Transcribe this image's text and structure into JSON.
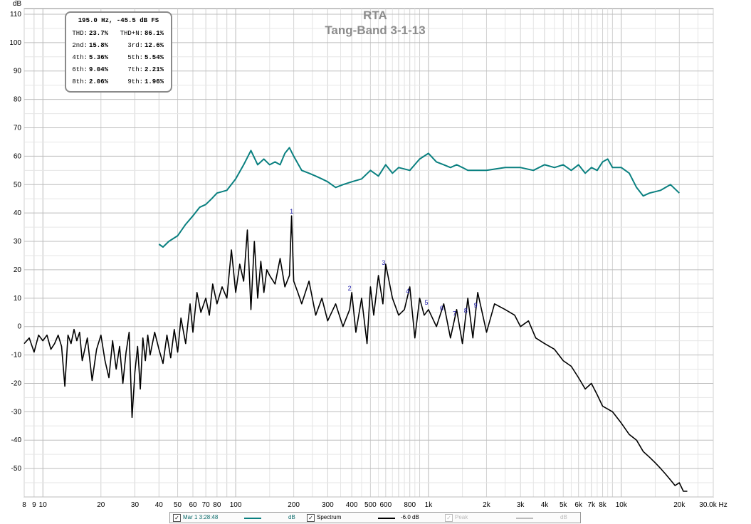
{
  "chart_data": {
    "type": "line",
    "title": "RTA",
    "subtitle": "Tang-Band 3-1-13",
    "ylabel": "dB",
    "xunit": "Hz",
    "xscale": "log",
    "xlim": [
      8,
      30000
    ],
    "ylim": [
      -60,
      112
    ],
    "grid": true,
    "yticks": [
      -50,
      -40,
      -30,
      -20,
      -10,
      0,
      10,
      20,
      30,
      40,
      50,
      60,
      70,
      80,
      90,
      100,
      110
    ],
    "xticks": [
      {
        "v": 8,
        "label": "8"
      },
      {
        "v": 9,
        "label": "9"
      },
      {
        "v": 10,
        "label": "10"
      },
      {
        "v": 20,
        "label": "20"
      },
      {
        "v": 30,
        "label": "30"
      },
      {
        "v": 40,
        "label": "40"
      },
      {
        "v": 50,
        "label": "50"
      },
      {
        "v": 60,
        "label": "60"
      },
      {
        "v": 70,
        "label": "70"
      },
      {
        "v": 80,
        "label": "80"
      },
      {
        "v": 100,
        "label": "100"
      },
      {
        "v": 200,
        "label": "200"
      },
      {
        "v": 300,
        "label": "300"
      },
      {
        "v": 400,
        "label": "400"
      },
      {
        "v": 500,
        "label": "500"
      },
      {
        "v": 600,
        "label": "600"
      },
      {
        "v": 800,
        "label": "800"
      },
      {
        "v": 1000,
        "label": "1k"
      },
      {
        "v": 2000,
        "label": "2k"
      },
      {
        "v": 3000,
        "label": "3k"
      },
      {
        "v": 4000,
        "label": "4k"
      },
      {
        "v": 5000,
        "label": "5k"
      },
      {
        "v": 6000,
        "label": "6k"
      },
      {
        "v": 7000,
        "label": "7k"
      },
      {
        "v": 8000,
        "label": "8k"
      },
      {
        "v": 10000,
        "label": "10k"
      },
      {
        "v": 20000,
        "label": "20k"
      },
      {
        "v": 30000,
        "label": "30.0k Hz"
      }
    ],
    "series": [
      {
        "name": "Mar 1 3:28:48",
        "unit": "dB",
        "color": "#0a8080",
        "x": [
          40,
          42,
          45,
          50,
          55,
          60,
          65,
          70,
          75,
          80,
          90,
          100,
          110,
          120,
          130,
          140,
          150,
          160,
          170,
          180,
          190,
          200,
          220,
          240,
          260,
          280,
          300,
          330,
          360,
          400,
          450,
          500,
          550,
          600,
          650,
          700,
          800,
          900,
          1000,
          1100,
          1200,
          1300,
          1400,
          1500,
          1600,
          1800,
          2000,
          2500,
          3000,
          3500,
          4000,
          4500,
          5000,
          5500,
          6000,
          6500,
          7000,
          7500,
          8000,
          8500,
          9000,
          10000,
          11000,
          12000,
          13000,
          14000,
          16000,
          18000,
          20000
        ],
        "y": [
          29,
          28,
          30,
          32,
          36,
          39,
          42,
          43,
          45,
          47,
          48,
          52,
          57,
          62,
          57,
          59,
          57,
          58,
          57,
          61,
          63,
          60,
          55,
          54,
          53,
          52,
          51,
          49,
          50,
          51,
          52,
          55,
          53,
          57,
          54,
          56,
          55,
          59,
          61,
          58,
          57,
          56,
          57,
          56,
          55,
          55,
          55,
          56,
          56,
          55,
          57,
          56,
          57,
          55,
          57,
          54,
          56,
          55,
          58,
          59,
          56,
          56,
          54,
          49,
          46,
          47,
          48,
          50,
          47
        ]
      },
      {
        "name": "Spectrum",
        "unit": "-6.0 dB",
        "color": "#000000",
        "x": [
          8,
          8.5,
          9,
          9.5,
          10,
          10.5,
          11,
          11.5,
          12,
          12.5,
          13,
          13.5,
          14,
          14.5,
          15,
          15.5,
          16,
          17,
          18,
          19,
          20,
          21,
          22,
          23,
          24,
          25,
          26,
          27,
          28,
          29,
          30,
          31,
          32,
          33,
          34,
          35,
          36,
          38,
          40,
          42,
          44,
          46,
          48,
          50,
          52,
          55,
          58,
          60,
          63,
          66,
          70,
          73,
          76,
          80,
          85,
          90,
          95,
          100,
          105,
          110,
          115,
          120,
          125,
          130,
          135,
          140,
          145,
          150,
          160,
          170,
          180,
          190,
          195,
          200,
          210,
          220,
          240,
          260,
          280,
          300,
          330,
          360,
          390,
          400,
          420,
          450,
          480,
          500,
          520,
          550,
          580,
          600,
          650,
          700,
          750,
          800,
          850,
          900,
          950,
          1000,
          1100,
          1200,
          1300,
          1400,
          1500,
          1600,
          1700,
          1800,
          2000,
          2200,
          2500,
          2800,
          3000,
          3300,
          3600,
          4000,
          4500,
          5000,
          5500,
          6000,
          6500,
          7000,
          7500,
          8000,
          9000,
          10000,
          11000,
          12000,
          13000,
          14000,
          15000,
          16000,
          17000,
          18000,
          19000,
          20000,
          21000,
          22000
        ],
        "y": [
          -6,
          -4,
          -9,
          -3,
          -5,
          -3,
          -8,
          -6,
          -3,
          -7,
          -21,
          -3,
          -6,
          -1,
          -5,
          -2,
          -12,
          -4,
          -19,
          -8,
          -3,
          -12,
          -18,
          -5,
          -15,
          -7,
          -20,
          -9,
          -2,
          -32,
          -16,
          -7,
          -22,
          -4,
          -12,
          -3,
          -10,
          -2,
          -8,
          -13,
          -3,
          -11,
          -1,
          -9,
          3,
          -6,
          8,
          -2,
          12,
          5,
          10,
          4,
          15,
          8,
          14,
          10,
          27,
          12,
          22,
          16,
          34,
          6,
          30,
          10,
          23,
          12,
          20,
          18,
          15,
          24,
          14,
          18,
          39,
          16,
          12,
          8,
          16,
          4,
          10,
          2,
          8,
          0,
          6,
          12,
          -2,
          10,
          -6,
          14,
          4,
          18,
          8,
          22,
          10,
          4,
          6,
          14,
          -4,
          10,
          4,
          6,
          0,
          8,
          -4,
          6,
          -6,
          10,
          -4,
          12,
          -2,
          8,
          6,
          4,
          0,
          2,
          -4,
          -6,
          -8,
          -12,
          -14,
          -18,
          -22,
          -20,
          -24,
          -28,
          -30,
          -34,
          -38,
          -40,
          -44,
          -46,
          -48,
          -50,
          -52,
          -54,
          -56,
          -55,
          -58,
          -58
        ]
      }
    ],
    "harmonic_markers": [
      {
        "label": "1",
        "x": 195,
        "y": 39
      },
      {
        "label": "2",
        "x": 390,
        "y": 12
      },
      {
        "label": "3",
        "x": 585,
        "y": 21
      },
      {
        "label": "4",
        "x": 780,
        "y": 11
      },
      {
        "label": "5",
        "x": 975,
        "y": 7
      },
      {
        "label": "6",
        "x": 1170,
        "y": 5
      },
      {
        "label": "7",
        "x": 1365,
        "y": 3
      },
      {
        "label": "8",
        "x": 1560,
        "y": 4
      },
      {
        "label": "9",
        "x": 1755,
        "y": 6
      }
    ]
  },
  "info_box": {
    "header": "195.0 Hz, -45.5 dB FS",
    "rows": [
      {
        "k1": "THD:",
        "v1": "23.7%",
        "k2": "THD+N:",
        "v2": "86.1%"
      },
      {
        "k1": "2nd:",
        "v1": "15.8%",
        "k2": "3rd:",
        "v2": "12.6%"
      },
      {
        "k1": "4th:",
        "v1": "5.36%",
        "k2": "5th:",
        "v2": "5.54%"
      },
      {
        "k1": "6th:",
        "v1": "9.04%",
        "k2": "7th:",
        "v2": "2.21%"
      },
      {
        "k1": "8th:",
        "v1": "2.06%",
        "k2": "9th:",
        "v2": "1.96%"
      }
    ]
  },
  "legend": {
    "items": [
      {
        "label": "Mar 1 3:28:48",
        "value": "dB",
        "checked": true,
        "color": "#0a8080",
        "enabled": true
      },
      {
        "label": "Spectrum",
        "value": "-6.0 dB",
        "checked": true,
        "color": "#000000",
        "enabled": true
      },
      {
        "label": "Peak",
        "value": "dB",
        "checked": true,
        "color": "#bbbbbb",
        "enabled": false
      }
    ]
  }
}
